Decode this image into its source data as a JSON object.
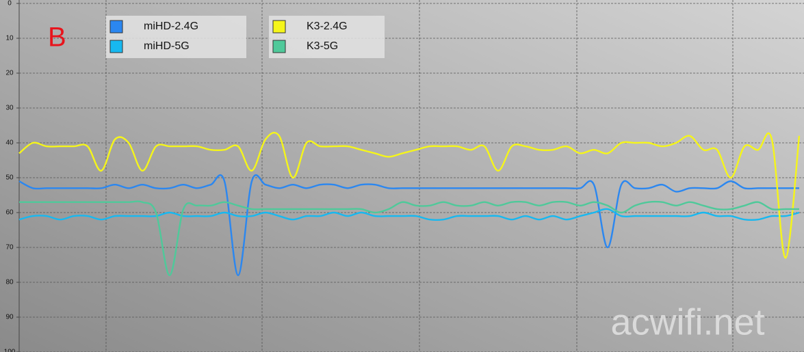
{
  "chart_data": {
    "type": "line",
    "annotation": "B",
    "watermark": "acwifi.net",
    "ylim": [
      0,
      100
    ],
    "yticks": [
      0,
      10,
      20,
      30,
      40,
      50,
      60,
      70,
      80,
      90,
      100
    ],
    "y_inverted": true,
    "grid": true,
    "series": [
      {
        "name": "miHD-2.4G",
        "color": "#2b87f0",
        "values": [
          51,
          53,
          53,
          53,
          53,
          53,
          53,
          52,
          53,
          52,
          53,
          53,
          52,
          53,
          52,
          51,
          78,
          51,
          52,
          53,
          52,
          53,
          52,
          52,
          53,
          52,
          52,
          53,
          53,
          53,
          53,
          53,
          53,
          53,
          53,
          53,
          53,
          53,
          53,
          53,
          53,
          53,
          52,
          70,
          52,
          53,
          53,
          52,
          54,
          53,
          53,
          53,
          51,
          53,
          53,
          53,
          53,
          53
        ]
      },
      {
        "name": "miHD-5G",
        "color": "#17b8f0",
        "values": [
          62,
          61,
          61,
          62,
          61,
          61,
          62,
          61,
          61,
          61,
          61,
          60,
          61,
          61,
          61,
          60,
          61,
          61,
          60,
          61,
          62,
          61,
          61,
          60,
          61,
          60,
          61,
          61,
          61,
          61,
          62,
          62,
          61,
          61,
          61,
          61,
          62,
          61,
          62,
          61,
          62,
          61,
          60,
          59,
          61,
          61,
          61,
          61,
          61,
          61,
          60,
          61,
          61,
          62,
          62,
          61,
          61,
          60
        ]
      },
      {
        "name": "K3-2.4G",
        "color": "#f5f51a",
        "values": [
          43,
          40,
          41,
          41,
          41,
          41,
          48,
          39,
          40,
          48,
          41,
          41,
          41,
          41,
          42,
          42,
          41,
          48,
          39,
          38,
          50,
          40,
          41,
          41,
          41,
          42,
          43,
          44,
          43,
          42,
          41,
          41,
          41,
          42,
          41,
          48,
          41,
          41,
          42,
          42,
          41,
          43,
          42,
          43,
          40,
          40,
          40,
          41,
          40,
          38,
          42,
          42,
          50,
          41,
          42,
          39,
          73,
          38
        ]
      },
      {
        "name": "K3-5G",
        "color": "#4fc99a",
        "values": [
          57,
          57,
          57,
          57,
          57,
          57,
          57,
          57,
          57,
          57,
          60,
          78,
          59,
          58,
          58,
          57,
          58,
          59,
          59,
          59,
          59,
          59,
          59,
          59,
          59,
          59,
          60,
          59,
          57,
          58,
          58,
          57,
          58,
          58,
          57,
          58,
          57,
          57,
          58,
          57,
          57,
          58,
          57,
          58,
          60,
          58,
          57,
          57,
          58,
          57,
          58,
          59,
          59,
          58,
          57,
          59,
          59,
          59
        ]
      }
    ]
  }
}
